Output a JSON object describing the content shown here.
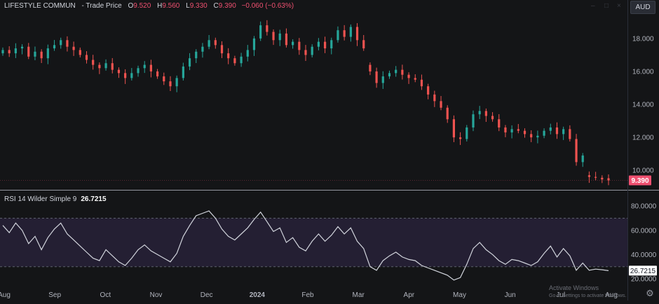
{
  "header": {
    "symbol": "LIFESTYLE COMMUN",
    "price_type": "- Trade Price",
    "open_label": "O",
    "open": "9.520",
    "high_label": "H",
    "high": "9.560",
    "low_label": "L",
    "low": "9.330",
    "close_label": "C",
    "close": "9.390",
    "change": "−0.060 (−0.63%)"
  },
  "currency_button": "AUD",
  "rsi_header": {
    "label": "RSI 14 Wilder Simple 9",
    "value": "26.7215"
  },
  "watermark": {
    "line1": "Activate Windows",
    "line2": "Go to Settings to activate Windows."
  },
  "colors": {
    "background": "#141517",
    "up": "#26a69a",
    "down": "#ef5350",
    "rsi_line": "#d1d4dc",
    "rsi_band": "#241f33",
    "price_label_bg": "#ef5070"
  },
  "icons": {
    "settings": "gear-icon"
  },
  "chart_data": [
    {
      "type": "candlestick",
      "title": "LIFESTYLE COMMUN - Trade Price",
      "yticks": [
        "18.000",
        "16.000",
        "14.000",
        "12.000",
        "10.000"
      ],
      "ylim": [
        9.2,
        19.4
      ],
      "last_price_label": "9.390",
      "months": [
        "Aug",
        "Sep",
        "Oct",
        "Nov",
        "Dec",
        "2024",
        "Feb",
        "Mar",
        "Apr",
        "May",
        "Jun",
        "Jul",
        "Aug"
      ],
      "series": [
        {
          "name": "close",
          "values": [
            17.3,
            17.1,
            17.4,
            17.5,
            16.9,
            17.2,
            16.8,
            17.4,
            17.6,
            17.9,
            17.5,
            17.3,
            17.0,
            16.7,
            16.4,
            16.2,
            16.5,
            16.1,
            15.9,
            15.6,
            15.9,
            16.2,
            16.4,
            16.0,
            15.7,
            15.4,
            15.1,
            15.6,
            16.3,
            16.8,
            17.2,
            17.5,
            17.9,
            17.6,
            17.1,
            16.8,
            16.5,
            16.9,
            17.3,
            18.0,
            18.8,
            18.4,
            17.9,
            18.3,
            17.6,
            17.8,
            17.3,
            17.0,
            17.5,
            17.8,
            17.4,
            17.9,
            18.5,
            18.1,
            18.7,
            17.9,
            17.4,
            16.0,
            15.3,
            15.7,
            15.9,
            16.1,
            15.8,
            15.6,
            15.5,
            15.1,
            14.6,
            14.2,
            13.8,
            13.1,
            12.0,
            11.9,
            12.6,
            13.4,
            13.6,
            13.3,
            13.1,
            12.6,
            12.3,
            12.5,
            12.4,
            12.2,
            12.0,
            12.1,
            12.4,
            12.6,
            12.2,
            12.5,
            11.9,
            10.5,
            10.9,
            9.6,
            9.55,
            9.45,
            9.39
          ]
        },
        {
          "name": "open",
          "values": [
            17.1,
            17.3,
            17.1,
            17.4,
            17.5,
            16.9,
            17.2,
            16.8,
            17.4,
            17.6,
            17.9,
            17.5,
            17.3,
            17.0,
            16.7,
            16.4,
            16.2,
            16.5,
            16.1,
            15.9,
            15.6,
            15.9,
            16.2,
            16.4,
            16.0,
            15.7,
            15.4,
            15.1,
            15.6,
            16.3,
            16.8,
            17.2,
            17.5,
            17.9,
            17.6,
            17.1,
            16.8,
            16.5,
            16.9,
            17.3,
            18.0,
            18.8,
            18.4,
            17.9,
            18.3,
            17.6,
            17.8,
            17.3,
            17.0,
            17.5,
            17.8,
            17.4,
            17.9,
            18.5,
            18.1,
            18.7,
            17.9,
            16.4,
            16.0,
            15.3,
            15.7,
            15.9,
            16.1,
            15.8,
            15.6,
            15.5,
            15.1,
            14.6,
            14.2,
            13.8,
            13.1,
            12.0,
            11.9,
            12.6,
            13.4,
            13.6,
            13.3,
            13.1,
            12.6,
            12.3,
            12.5,
            12.4,
            12.2,
            12.0,
            12.1,
            12.4,
            12.6,
            12.2,
            12.5,
            11.9,
            10.5,
            9.7,
            9.6,
            9.55,
            9.52
          ]
        }
      ]
    },
    {
      "type": "line",
      "title": "RSI 14 Wilder Simple 9",
      "yticks": [
        "80.0000",
        "60.0000",
        "40.0000",
        "20.0000"
      ],
      "ylim": [
        16,
        87
      ],
      "levels": [
        70,
        30
      ],
      "last_value_label": "26.7215",
      "series": [
        {
          "name": "RSI",
          "values": [
            64,
            58,
            66,
            60,
            49,
            55,
            44,
            54,
            61,
            66,
            57,
            52,
            47,
            42,
            37,
            35,
            44,
            39,
            34,
            31,
            37,
            44,
            48,
            43,
            40,
            37,
            34,
            41,
            55,
            64,
            72,
            74,
            76,
            70,
            61,
            55,
            52,
            57,
            62,
            69,
            75,
            67,
            59,
            62,
            50,
            54,
            46,
            43,
            51,
            57,
            51,
            56,
            63,
            57,
            62,
            51,
            45,
            30,
            27,
            35,
            39,
            42,
            38,
            36,
            35,
            31,
            29,
            27,
            25,
            23,
            19,
            21,
            32,
            45,
            50,
            44,
            40,
            35,
            32,
            36,
            35,
            33,
            31,
            34,
            41,
            47,
            38,
            45,
            39,
            27,
            33,
            27,
            28,
            27.5,
            26.7215
          ]
        }
      ]
    }
  ]
}
